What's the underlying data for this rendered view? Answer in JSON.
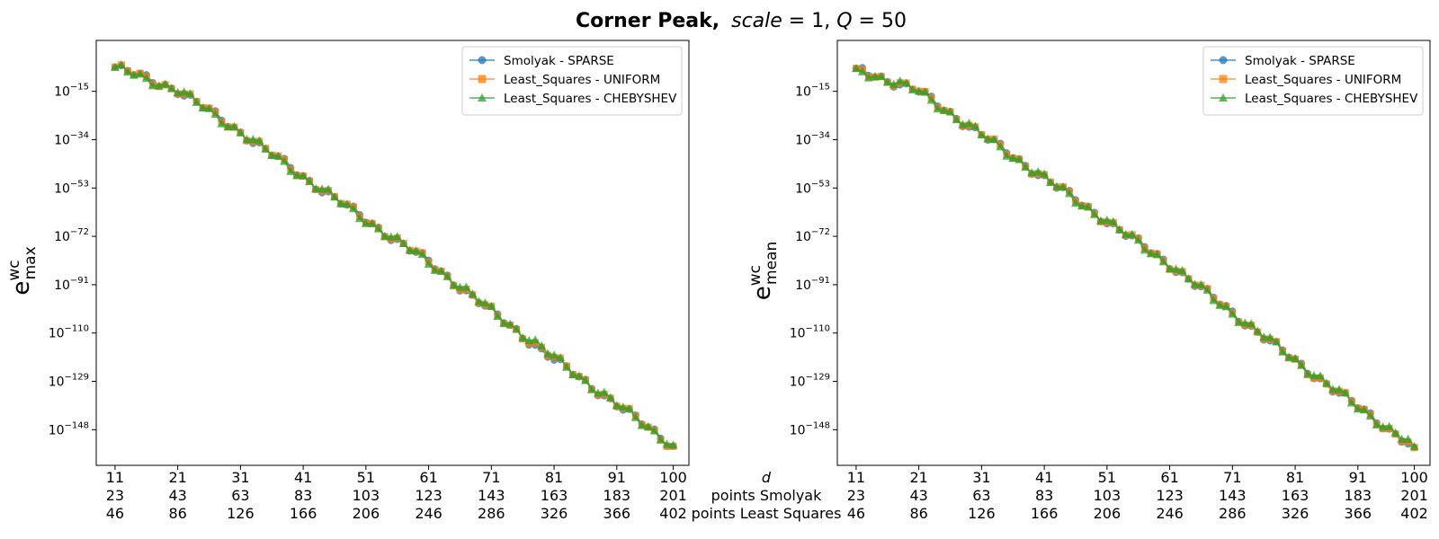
{
  "figure": {
    "title_bold": "Corner Peak,",
    "title_rest_1": "scale",
    "title_rest_2": " = 1, ",
    "title_rest_3": "Q",
    "title_rest_4": " = 50"
  },
  "xlabel_rows": [
    "d",
    "points Smolyak",
    "points Least Squares"
  ],
  "chart_data": [
    {
      "type": "line",
      "ylabel_base": "e",
      "ylabel_sup": "wc",
      "ylabel_sub": "max",
      "y_scale": "log",
      "ylim_exponent": [
        -162,
        5
      ],
      "y_ticks_exponent": [
        -15,
        -34,
        -53,
        -72,
        -91,
        -110,
        -129,
        -148
      ],
      "x_tick_values": [
        11,
        21,
        31,
        41,
        51,
        61,
        71,
        81,
        91,
        100
      ],
      "x_tick_labels_d": [
        "11",
        "21",
        "31",
        "41",
        "51",
        "61",
        "71",
        "81",
        "91",
        "100"
      ],
      "x_tick_labels_smolyak": [
        "23",
        "43",
        "63",
        "83",
        "103",
        "123",
        "143",
        "163",
        "183",
        "201"
      ],
      "x_tick_labels_ls": [
        "46",
        "86",
        "126",
        "166",
        "206",
        "246",
        "286",
        "326",
        "366",
        "402"
      ],
      "legend_position": "top-right",
      "series_log10_ymax_at_d": {
        "d": [
          11,
          21,
          31,
          41,
          51,
          61,
          71,
          81,
          91,
          100
        ],
        "SPARSE": [
          -5.5,
          -14.5,
          -31,
          -48.5,
          -65.5,
          -82,
          -101.5,
          -120.5,
          -138,
          -154.5
        ],
        "UNIFORM": [
          -5.5,
          -14.5,
          -31,
          -48.5,
          -65.5,
          -82,
          -101.5,
          -120,
          -138,
          -154.5
        ],
        "CHEBYSHEV": [
          -5.5,
          -14.5,
          -31,
          -48.5,
          -65.5,
          -82,
          -101,
          -119.5,
          -138,
          -154
        ]
      },
      "series": [
        {
          "name": "Smolyak - SPARSE",
          "color": "#1f77b4",
          "marker": "circle"
        },
        {
          "name": "Least_Squares - UNIFORM",
          "color": "#ff7f0e",
          "marker": "square"
        },
        {
          "name": "Least_Squares - CHEBYSHEV",
          "color": "#2ca02c",
          "marker": "triangle"
        }
      ]
    },
    {
      "type": "line",
      "ylabel_base": "e",
      "ylabel_sup": "wc",
      "ylabel_sub": "mean",
      "y_scale": "log",
      "ylim_exponent": [
        -162,
        5
      ],
      "y_ticks_exponent": [
        -15,
        -34,
        -53,
        -72,
        -91,
        -110,
        -129,
        -148
      ],
      "x_tick_values": [
        11,
        21,
        31,
        41,
        51,
        61,
        71,
        81,
        91,
        100
      ],
      "x_tick_labels_d": [
        "11",
        "21",
        "31",
        "41",
        "51",
        "61",
        "71",
        "81",
        "91",
        "100"
      ],
      "x_tick_labels_smolyak": [
        "23",
        "43",
        "63",
        "83",
        "103",
        "123",
        "143",
        "163",
        "183",
        "201"
      ],
      "x_tick_labels_ls": [
        "46",
        "86",
        "126",
        "166",
        "206",
        "246",
        "286",
        "326",
        "366",
        "402"
      ],
      "legend_position": "top-right",
      "series_log10_ymean_at_d": {
        "d": [
          11,
          21,
          31,
          41,
          51,
          61,
          71,
          81,
          91,
          100
        ],
        "SPARSE": [
          -6,
          -15,
          -32,
          -49,
          -66,
          -83,
          -102,
          -121,
          -139,
          -155
        ],
        "UNIFORM": [
          -6,
          -15,
          -32,
          -49,
          -66,
          -83,
          -102,
          -121,
          -139,
          -155
        ],
        "CHEBYSHEV": [
          -6,
          -15,
          -32,
          -49,
          -66,
          -83,
          -102,
          -120.5,
          -139,
          -154.5
        ]
      },
      "series": [
        {
          "name": "Smolyak - SPARSE",
          "color": "#1f77b4",
          "marker": "circle"
        },
        {
          "name": "Least_Squares - UNIFORM",
          "color": "#ff7f0e",
          "marker": "square"
        },
        {
          "name": "Least_Squares - CHEBYSHEV",
          "color": "#2ca02c",
          "marker": "triangle"
        }
      ]
    }
  ]
}
